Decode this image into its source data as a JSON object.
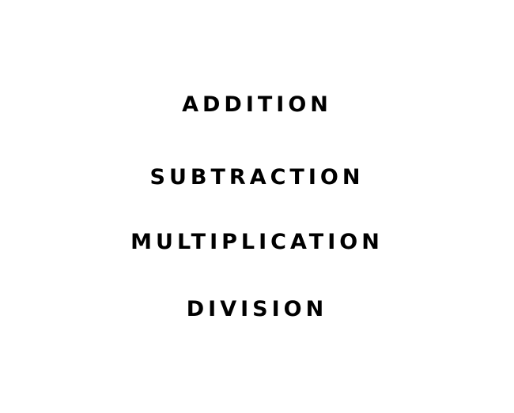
{
  "words": [
    "ADDITION",
    "SUBTRACTION",
    "MULTIPLICATION",
    "DIVISION"
  ],
  "colors": {
    "background": "#ffffff",
    "text": "#000000"
  }
}
